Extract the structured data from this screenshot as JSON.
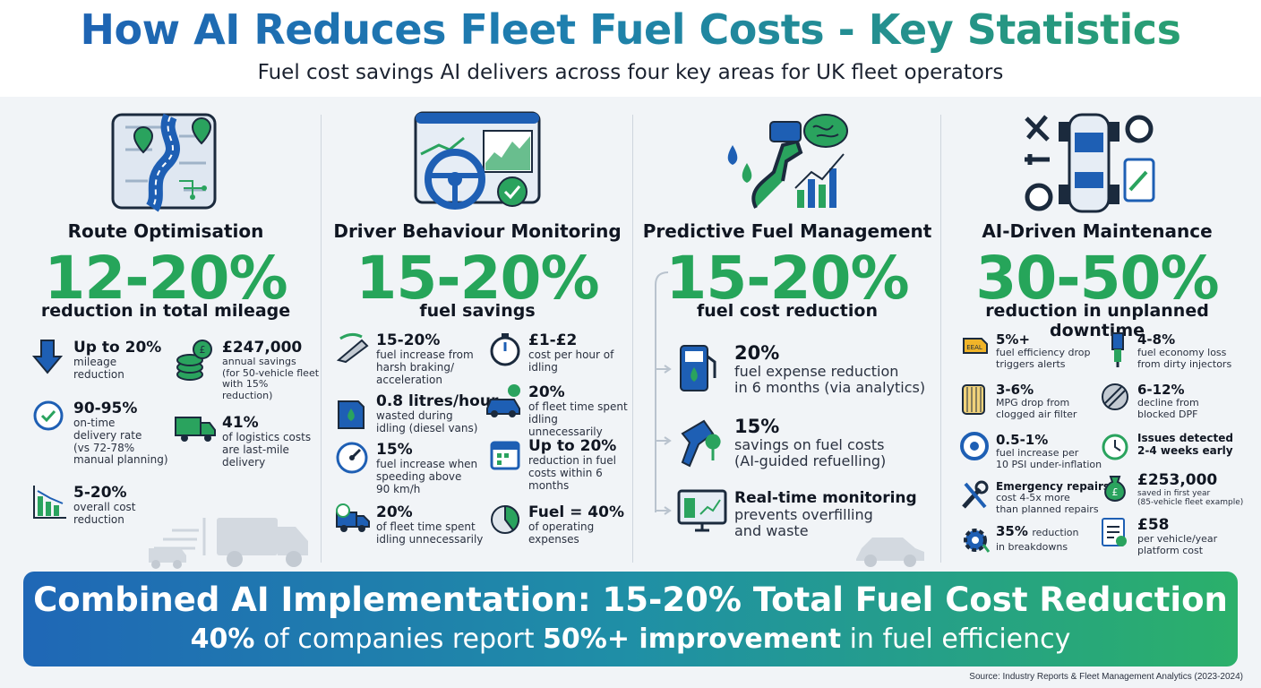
{
  "header": {
    "title": "How AI Reduces Fleet Fuel Costs - Key Statistics",
    "subtitle": "Fuel cost savings AI delivers across four key areas for UK fleet operators"
  },
  "colors": {
    "blue": "#1e5fb4",
    "green": "#26a55a",
    "text": "#101622"
  },
  "columns": [
    {
      "title": "Route Optimisation",
      "headline": "12-20%",
      "headline_sub": "reduction in total mileage",
      "icon": "route-map-icon",
      "stats": [
        {
          "icon": "down-arrow-icon",
          "head": "Up to 20%",
          "desc": "mileage\nreduction"
        },
        {
          "icon": "coins-icon",
          "head": "£247,000",
          "desc": "annual savings\n(for 50-vehicle fleet\nwith 15% reduction)"
        },
        {
          "icon": "clock-check-icon",
          "head": "90-95%",
          "desc": "on-time\ndelivery rate\n(vs 72-78%\nmanual planning)"
        },
        {
          "icon": "delivery-truck-icon",
          "head": "41%",
          "desc": "of logistics costs\nare last-mile\ndelivery"
        },
        {
          "icon": "bar-chart-down-icon",
          "head": "5-20%",
          "desc": "overall cost\nreduction"
        }
      ]
    },
    {
      "title": "Driver Behaviour Monitoring",
      "headline": "15-20%",
      "headline_sub": "fuel savings",
      "icon": "dashboard-steering-icon",
      "stats": [
        {
          "icon": "pedal-icon",
          "head": "15-20%",
          "desc": "fuel increase from\nharsh braking/\nacceleration"
        },
        {
          "icon": "stopwatch-icon",
          "head": "£1-£2",
          "desc": "cost per hour of\nidling"
        },
        {
          "icon": "fuel-can-icon",
          "head": "0.8 litres/hour",
          "desc": "wasted during\nidling (diesel vans)"
        },
        {
          "icon": "car-clock-icon",
          "head": "20%",
          "desc": "of fleet time spent\nidling unnecessarily"
        },
        {
          "icon": "speedometer-icon",
          "head": "15%",
          "desc": "fuel increase when\nspeeding above\n90 km/h"
        },
        {
          "icon": "calendar-icon",
          "head": "Up to 20%",
          "desc": "reduction in fuel\ncosts within 6\nmonths"
        },
        {
          "icon": "truck-clock-icon",
          "head": "20%",
          "desc": "of fleet time spent\nidling unnecessarily"
        },
        {
          "icon": "pie-chart-icon",
          "head": "Fuel = 40%",
          "desc": "of operating\nexpenses"
        }
      ]
    },
    {
      "title": "Predictive Fuel Management",
      "headline": "15-20%",
      "headline_sub": "fuel cost reduction",
      "icon": "fuel-brain-icon",
      "stats": [
        {
          "icon": "fuel-pump-icon",
          "head": "20%",
          "desc": "fuel expense reduction\nin 6 months (via analytics)"
        },
        {
          "icon": "fuel-nozzle-icon",
          "head": "15%",
          "desc": "savings on fuel costs\n(AI-guided refuelling)"
        },
        {
          "icon": "monitor-icon",
          "head": "Real-time monitoring",
          "desc": "prevents overfilling\nand waste"
        }
      ]
    },
    {
      "title": "AI-Driven Maintenance",
      "headline": "30-50%",
      "headline_sub": "reduction in unplanned downtime",
      "icon": "vehicle-tools-icon",
      "stats": [
        {
          "icon": "engine-warning-icon",
          "head": "5%+",
          "desc": "fuel efficiency drop\ntriggers alerts"
        },
        {
          "icon": "injector-icon",
          "head": "4-8%",
          "desc": "fuel economy loss\nfrom dirty injectors"
        },
        {
          "icon": "air-filter-icon",
          "head": "3-6%",
          "desc": "MPG drop from\nclogged air filter"
        },
        {
          "icon": "dpf-icon",
          "head": "6-12%",
          "desc": "decline from\nblocked DPF"
        },
        {
          "icon": "tyre-icon",
          "head": "0.5-1%",
          "desc": "fuel increase per\n10 PSI under-inflation"
        },
        {
          "icon": "clock-refresh-icon",
          "head": "Issues detected",
          "desc": "2-4 weeks early"
        },
        {
          "icon": "wrench-icon",
          "head": "Emergency repairs",
          "desc": "cost 4-5x more\nthan planned repairs"
        },
        {
          "icon": "money-bag-icon",
          "head": "£253,000",
          "desc": "saved in first year\n(85-vehicle fleet example)"
        },
        {
          "icon": "gear-down-icon",
          "head": "35%",
          "desc": "reduction\nin breakdowns"
        },
        {
          "icon": "invoice-icon",
          "head": "£58",
          "desc": "per vehicle/year\nplatform cost"
        }
      ]
    }
  ],
  "banner": {
    "line1": "Combined AI Implementation: 15-20% Total Fuel Cost Reduction",
    "line2_a": "40%",
    "line2_b": " of companies report ",
    "line2_c": "50%+ improvement",
    "line2_d": " in fuel efficiency"
  },
  "source": "Source: Industry Reports & Fleet Management Analytics (2023-2024)"
}
